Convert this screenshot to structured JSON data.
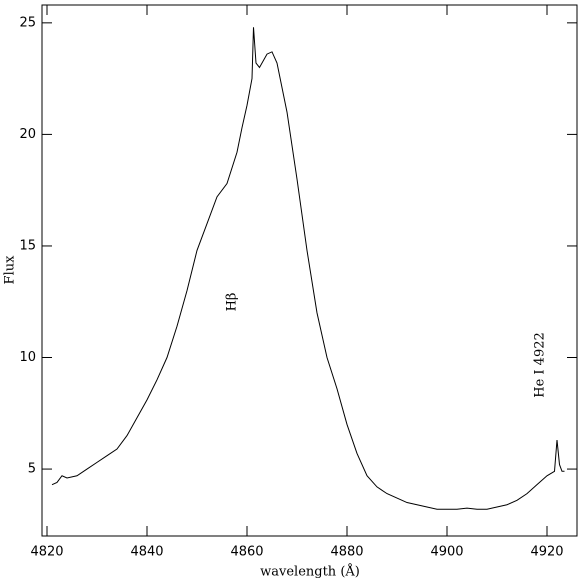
{
  "chart_data": {
    "type": "line",
    "xlabel": "wavelength (Å)",
    "ylabel": "Flux",
    "annotations": [
      "Hβ",
      "He I 4922"
    ],
    "xlim": [
      4819,
      4926
    ],
    "ylim": [
      2,
      25.8
    ],
    "xticks": [
      4820,
      4840,
      4860,
      4880,
      4900,
      4920
    ],
    "yticks": [
      5,
      10,
      15,
      20,
      25
    ],
    "series": [
      {
        "color": "#000000",
        "x": [
          4821,
          4822,
          4823,
          4824,
          4826,
          4828,
          4830,
          4832,
          4834,
          4836,
          4838,
          4840,
          4842,
          4844,
          4846,
          4848,
          4850,
          4852,
          4854,
          4856,
          4858,
          4859,
          4860,
          4861,
          4861.3,
          4861.8,
          4862.5,
          4864,
          4865,
          4866,
          4868,
          4870,
          4872,
          4874,
          4876,
          4878,
          4880,
          4882,
          4884,
          4886,
          4888,
          4890,
          4892,
          4894,
          4896,
          4898,
          4900,
          4902,
          4904,
          4906,
          4908,
          4910,
          4912,
          4914,
          4916,
          4918,
          4920,
          4921.5,
          4922,
          4922.5,
          4923,
          4923.5
        ],
        "values": [
          4.3,
          4.4,
          4.7,
          4.6,
          4.7,
          5.0,
          5.3,
          5.6,
          5.9,
          6.5,
          7.3,
          8.1,
          9.0,
          10.0,
          11.4,
          13.0,
          14.8,
          16.0,
          17.2,
          17.8,
          19.2,
          20.3,
          21.3,
          22.5,
          24.8,
          23.2,
          23.0,
          23.6,
          23.7,
          23.2,
          21.0,
          18.0,
          14.8,
          12.0,
          10.0,
          8.6,
          7.0,
          5.7,
          4.7,
          4.2,
          3.9,
          3.7,
          3.5,
          3.4,
          3.3,
          3.2,
          3.2,
          3.2,
          3.25,
          3.2,
          3.2,
          3.3,
          3.4,
          3.6,
          3.9,
          4.3,
          4.7,
          4.9,
          6.3,
          5.2,
          4.9,
          4.9
        ]
      }
    ]
  }
}
